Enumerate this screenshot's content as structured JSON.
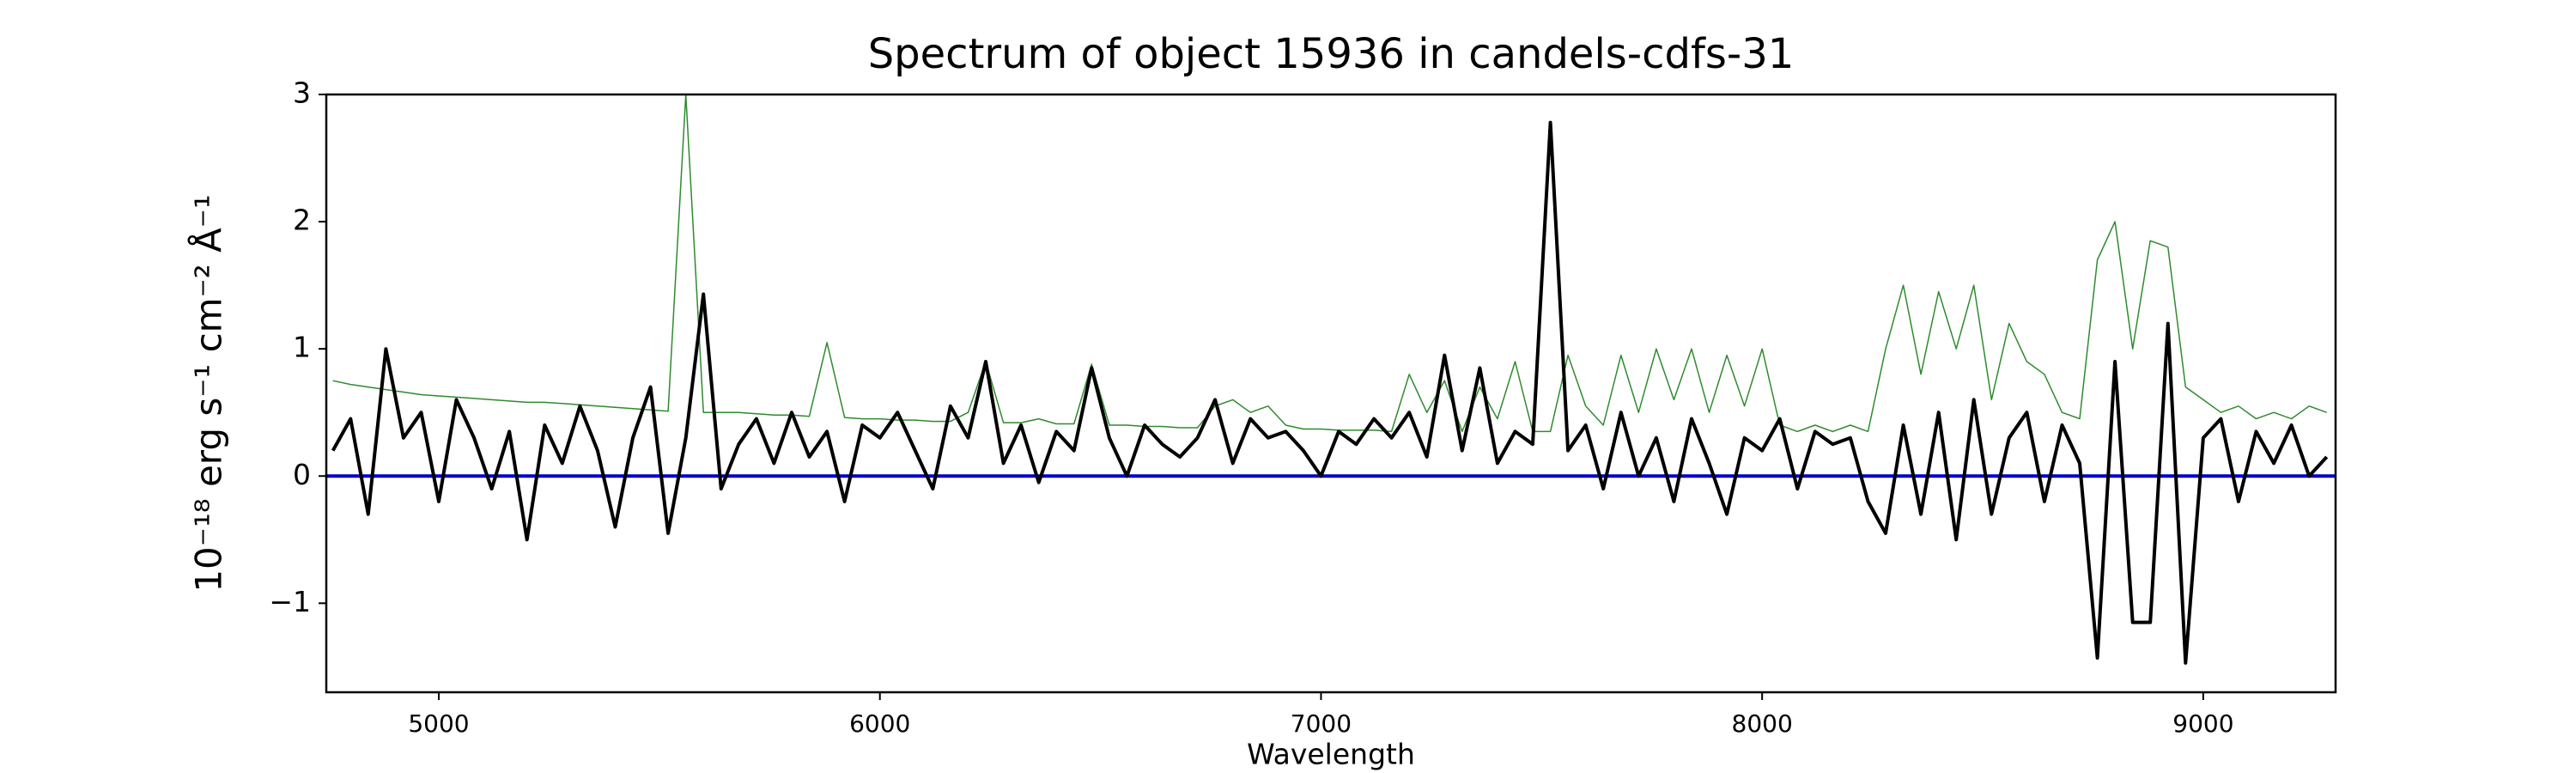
{
  "chart_data": {
    "type": "line",
    "title": "Spectrum of object 15936 in candels-cdfs-31",
    "x_label": "Wavelength",
    "y_label": "10⁻¹⁸ erg s⁻¹ cm⁻² Å⁻¹",
    "xlim": [
      4745,
      9300
    ],
    "ylim": [
      -1.7,
      3
    ],
    "xticks": [
      5000,
      6000,
      7000,
      8000,
      9000
    ],
    "yticks": [
      {
        "value": -1,
        "label": "−1"
      },
      0,
      1,
      2,
      3
    ],
    "grid": false,
    "reference_line": {
      "y": 0,
      "color": "#0000cc"
    },
    "x": [
      4760,
      4800,
      4840,
      4880,
      4920,
      4960,
      5000,
      5040,
      5080,
      5120,
      5160,
      5200,
      5240,
      5280,
      5320,
      5360,
      5400,
      5440,
      5480,
      5520,
      5560,
      5600,
      5640,
      5680,
      5720,
      5760,
      5800,
      5840,
      5880,
      5920,
      5960,
      6000,
      6040,
      6080,
      6120,
      6160,
      6200,
      6240,
      6280,
      6320,
      6360,
      6400,
      6440,
      6480,
      6520,
      6560,
      6600,
      6640,
      6680,
      6720,
      6760,
      6800,
      6840,
      6880,
      6920,
      6960,
      7000,
      7040,
      7080,
      7120,
      7160,
      7200,
      7240,
      7280,
      7320,
      7360,
      7400,
      7440,
      7480,
      7520,
      7560,
      7600,
      7640,
      7680,
      7720,
      7760,
      7800,
      7840,
      7880,
      7920,
      7960,
      8000,
      8040,
      8080,
      8120,
      8160,
      8200,
      8240,
      8280,
      8320,
      8360,
      8400,
      8440,
      8480,
      8520,
      8560,
      8600,
      8640,
      8680,
      8720,
      8760,
      8800,
      8840,
      8880,
      8920,
      8960,
      9000,
      9040,
      9080,
      9120,
      9160,
      9200,
      9240,
      9280
    ],
    "series": [
      {
        "color": "#2e8b2e",
        "width": 1.5,
        "values": [
          0.75,
          0.72,
          0.7,
          0.68,
          0.66,
          0.64,
          0.63,
          0.62,
          0.61,
          0.6,
          0.59,
          0.58,
          0.58,
          0.57,
          0.56,
          0.55,
          0.54,
          0.53,
          0.52,
          0.51,
          3.0,
          0.5,
          0.5,
          0.5,
          0.49,
          0.48,
          0.48,
          0.47,
          1.05,
          0.46,
          0.45,
          0.45,
          0.44,
          0.44,
          0.43,
          0.43,
          0.5,
          0.9,
          0.42,
          0.42,
          0.45,
          0.41,
          0.41,
          0.88,
          0.4,
          0.4,
          0.39,
          0.39,
          0.38,
          0.38,
          0.55,
          0.6,
          0.5,
          0.55,
          0.4,
          0.37,
          0.37,
          0.36,
          0.36,
          0.36,
          0.35,
          0.8,
          0.5,
          0.75,
          0.35,
          0.7,
          0.45,
          0.9,
          0.35,
          0.35,
          0.95,
          0.55,
          0.4,
          0.95,
          0.5,
          1.0,
          0.6,
          1.0,
          0.5,
          0.95,
          0.55,
          1.0,
          0.4,
          0.35,
          0.4,
          0.35,
          0.4,
          0.35,
          1.0,
          1.5,
          0.8,
          1.45,
          1.0,
          1.5,
          0.6,
          1.2,
          0.9,
          0.8,
          0.5,
          0.45,
          1.7,
          2.0,
          1.0,
          1.85,
          1.8,
          0.7,
          0.6,
          0.5,
          0.55,
          0.45,
          0.5,
          0.45,
          0.55,
          0.5
        ]
      },
      {
        "color": "#000000",
        "width": 4,
        "values": [
          0.2,
          0.45,
          -0.3,
          1.0,
          0.3,
          0.5,
          -0.2,
          0.6,
          0.3,
          -0.1,
          0.35,
          -0.5,
          0.4,
          0.1,
          0.55,
          0.2,
          -0.4,
          0.3,
          0.7,
          -0.45,
          0.3,
          1.43,
          -0.1,
          0.25,
          0.45,
          0.1,
          0.5,
          0.15,
          0.35,
          -0.2,
          0.4,
          0.3,
          0.5,
          0.2,
          -0.1,
          0.55,
          0.3,
          0.9,
          0.1,
          0.4,
          -0.05,
          0.35,
          0.2,
          0.85,
          0.3,
          0.0,
          0.4,
          0.25,
          0.15,
          0.3,
          0.6,
          0.1,
          0.45,
          0.3,
          0.35,
          0.2,
          0.0,
          0.35,
          0.25,
          0.45,
          0.3,
          0.5,
          0.15,
          0.95,
          0.2,
          0.85,
          0.1,
          0.35,
          0.25,
          2.78,
          0.2,
          0.4,
          -0.1,
          0.5,
          0.0,
          0.3,
          -0.2,
          0.45,
          0.1,
          -0.3,
          0.3,
          0.2,
          0.45,
          -0.1,
          0.35,
          0.25,
          0.3,
          -0.2,
          -0.45,
          0.4,
          -0.3,
          0.5,
          -0.5,
          0.6,
          -0.3,
          0.3,
          0.5,
          -0.2,
          0.4,
          0.1,
          -1.43,
          0.9,
          -1.15,
          -1.15,
          1.2,
          -1.47,
          0.3,
          0.45,
          -0.2,
          0.35,
          0.1,
          0.4,
          0.0,
          0.15
        ]
      }
    ]
  }
}
